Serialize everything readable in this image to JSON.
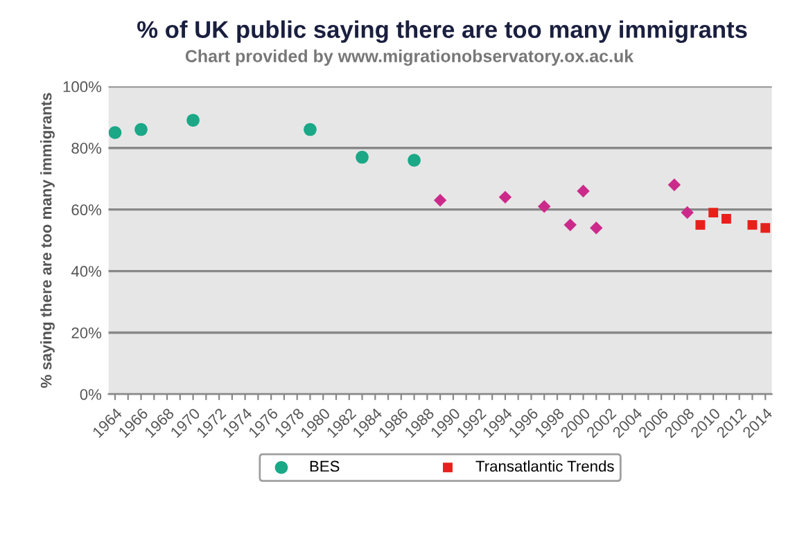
{
  "chart_data": {
    "type": "scatter",
    "title": "% of UK public saying there are too many immigrants",
    "subtitle": "Chart provided by www.migrationobservatory.ox.ac.uk",
    "ylabel": "% saying there are too many immigrants",
    "series": [
      {
        "name": "BES",
        "color": "#1aa887",
        "marker": "circle",
        "x": [
          1964,
          1966,
          1970,
          1979,
          1983,
          1987
        ],
        "values": [
          85,
          86,
          89,
          86,
          77,
          76
        ]
      },
      {
        "color": "#cc2a8a",
        "marker": "diamond",
        "x": [
          1989,
          1994,
          1997,
          1999,
          2000,
          2001,
          2007,
          2008
        ],
        "values": [
          63,
          64,
          61,
          55,
          66,
          54,
          68,
          59
        ]
      },
      {
        "name": "Transatlantic Trends",
        "color": "#e8201c",
        "marker": "square",
        "x": [
          2009,
          2010,
          2011,
          2013,
          2014
        ],
        "values": [
          55,
          59,
          57,
          55,
          54
        ]
      }
    ],
    "xlim": [
      1963.5,
      2014.5
    ],
    "xticks": [
      1964,
      {
        "value": 1965,
        "label": null
      },
      1966,
      {
        "value": 1967,
        "label": null
      },
      1968,
      {
        "value": 1969,
        "label": null
      },
      1970,
      {
        "value": 1971,
        "label": null
      },
      1972,
      {
        "value": 1973,
        "label": null
      },
      1974,
      {
        "value": 1975,
        "label": null
      },
      1976,
      {
        "value": 1977,
        "label": null
      },
      1978,
      {
        "value": 1979,
        "label": null
      },
      1980,
      {
        "value": 1981,
        "label": null
      },
      1982,
      {
        "value": 1983,
        "label": null
      },
      1984,
      {
        "value": 1985,
        "label": null
      },
      1986,
      {
        "value": 1987,
        "label": null
      },
      1988,
      {
        "value": 1989,
        "label": null
      },
      1990,
      {
        "value": 1991,
        "label": null
      },
      1992,
      {
        "value": 1993,
        "label": null
      },
      1994,
      {
        "value": 1995,
        "label": null
      },
      1996,
      {
        "value": 1997,
        "label": null
      },
      1998,
      {
        "value": 1999,
        "label": null
      },
      2000,
      {
        "value": 2001,
        "label": null
      },
      2002,
      {
        "value": 2003,
        "label": null
      },
      2004,
      {
        "value": 2005,
        "label": null
      },
      2006,
      {
        "value": 2007,
        "label": null
      },
      2008,
      {
        "value": 2009,
        "label": null
      },
      2010,
      {
        "value": 2011,
        "label": null
      },
      2012,
      {
        "value": 2013,
        "label": null
      },
      2014
    ],
    "ylim": [
      0,
      100
    ],
    "yticks": [
      {
        "value": 0,
        "label": "0%"
      },
      {
        "value": 20,
        "label": "20%"
      },
      {
        "value": 40,
        "label": "40%"
      },
      {
        "value": 60,
        "label": "60%"
      },
      {
        "value": 80,
        "label": "80%"
      },
      {
        "value": 100,
        "label": "100%"
      }
    ],
    "grid": "y",
    "legend": "bottom"
  }
}
